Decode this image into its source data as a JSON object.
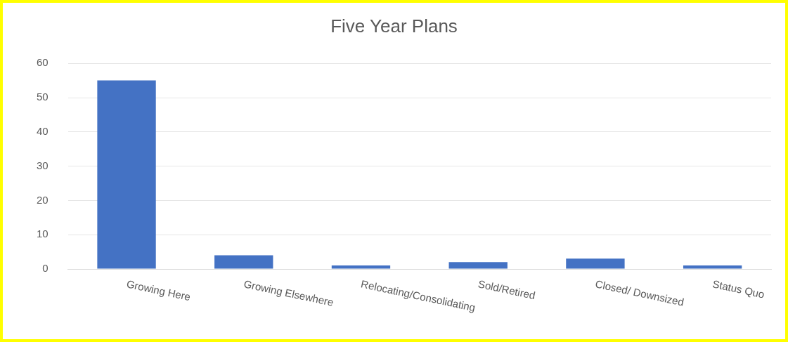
{
  "chart_data": {
    "type": "bar",
    "title": "Five Year Plans",
    "categories": [
      "Growing Here",
      "Growing Elsewhere",
      "Relocating/Consolidating",
      "Sold/Retired",
      "Closed/ Downsized",
      "Status Quo"
    ],
    "values": [
      55,
      4,
      1,
      2,
      3,
      1
    ],
    "color": "#4472c4",
    "ylim": [
      0,
      60
    ],
    "yticks": [
      0,
      10,
      20,
      30,
      40,
      50,
      60
    ],
    "grid": "y"
  }
}
